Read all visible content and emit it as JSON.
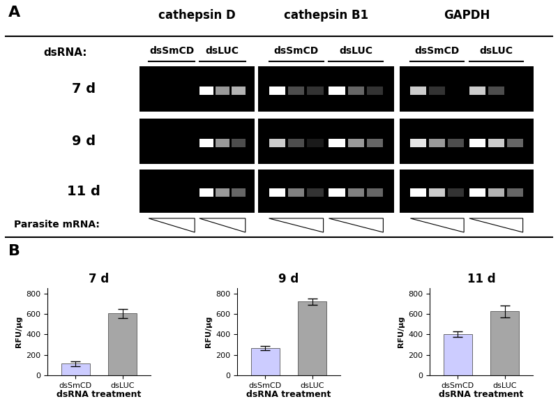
{
  "panel_a": {
    "label": "A",
    "genes": [
      "cathepsin D",
      "cathepsin B1",
      "GAPDH"
    ],
    "dsrna_label": "dsRNA:",
    "treatments": [
      "dsSmCD",
      "dsLUC"
    ],
    "timepoints": [
      "7 d",
      "9 d",
      "11 d"
    ],
    "mrna_label": "Parasite mRNA:",
    "band_intensity": [
      [
        [
          [
            0,
            0,
            0
          ],
          [
            1.0,
            0.6,
            0.7
          ]
        ],
        [
          [
            0,
            0,
            0
          ],
          [
            1.0,
            0.6,
            0.3
          ]
        ],
        [
          [
            0,
            0,
            0
          ],
          [
            1.0,
            0.6,
            0.4
          ]
        ]
      ],
      [
        [
          [
            1.0,
            0.3,
            0.2
          ],
          [
            1.0,
            0.4,
            0.2
          ]
        ],
        [
          [
            0.8,
            0.3,
            0.1
          ],
          [
            1.0,
            0.6,
            0.4
          ]
        ],
        [
          [
            1.0,
            0.5,
            0.2
          ],
          [
            1.0,
            0.5,
            0.4
          ]
        ]
      ],
      [
        [
          [
            0.8,
            0.2,
            0
          ],
          [
            0.8,
            0.3,
            0
          ]
        ],
        [
          [
            0.9,
            0.6,
            0.3
          ],
          [
            1.0,
            0.8,
            0.4
          ]
        ],
        [
          [
            1.0,
            0.8,
            0.2
          ],
          [
            1.0,
            0.7,
            0.4
          ]
        ]
      ]
    ]
  },
  "panel_b": {
    "label": "B"
  },
  "chart_data": [
    {
      "type": "bar",
      "title": "7 d",
      "categories": [
        "dsSmCD",
        "dsLUC"
      ],
      "values": [
        115,
        605
      ],
      "errors": [
        25,
        45
      ],
      "colors": [
        "#ccccff",
        "#a6a6a6"
      ],
      "ylabel": "RFU/µg",
      "xlabel": "dsRNA treatment",
      "ylim": [
        0,
        850
      ],
      "yticks": [
        0,
        200,
        400,
        600,
        800
      ]
    },
    {
      "type": "bar",
      "title": "9 d",
      "categories": [
        "dsSmCD",
        "dsLUC"
      ],
      "values": [
        270,
        720
      ],
      "errors": [
        20,
        30
      ],
      "colors": [
        "#ccccff",
        "#a6a6a6"
      ],
      "ylabel": "RFU/µg",
      "xlabel": "dsRNA treatment",
      "ylim": [
        0,
        850
      ],
      "yticks": [
        0,
        200,
        400,
        600,
        800
      ]
    },
    {
      "type": "bar",
      "title": "11 d",
      "categories": [
        "dsSmCD",
        "dsLUC"
      ],
      "values": [
        405,
        625
      ],
      "errors": [
        28,
        60
      ],
      "colors": [
        "#ccccff",
        "#a6a6a6"
      ],
      "ylabel": "RFU/µg",
      "xlabel": "dsRNA treatment",
      "ylim": [
        0,
        850
      ],
      "yticks": [
        0,
        200,
        400,
        600,
        800
      ]
    }
  ]
}
